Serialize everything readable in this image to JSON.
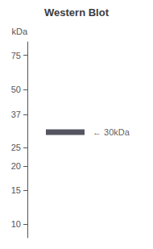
{
  "chart_data": {
    "type": "scatter",
    "title": "Western Blot",
    "ylabel": "kDa",
    "values": [
      30
    ],
    "color": "#2a2a3a",
    "marker": "band",
    "annotation": "← 30kDa",
    "log": "y",
    "ylim": [
      8.5,
      88
    ],
    "yticks": [
      10,
      15,
      20,
      25,
      37,
      50,
      75
    ],
    "grid": false,
    "tick_labels": "y"
  }
}
